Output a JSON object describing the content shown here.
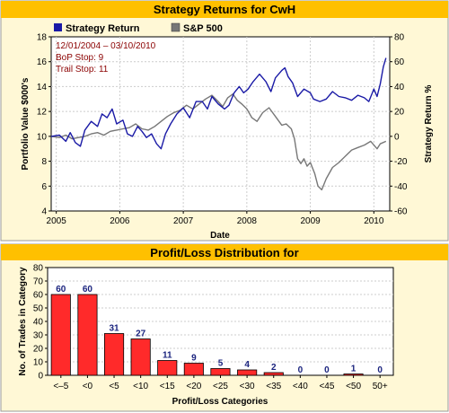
{
  "colors": {
    "panel_bg": "#fff8d6",
    "title_bar": "#ffc000",
    "border": "#9a9a9a",
    "strategy": "#1a1aa6",
    "sp500": "#777777",
    "bar": "#ff2a2a",
    "bar_label": "#1a237e",
    "note": "#8b0000"
  },
  "chart_data": [
    {
      "type": "line",
      "title": "Strategy Returns for CwH",
      "xlabel": "Date",
      "ylabel": "Portfolio Value $000's",
      "ylabel_right": "Strategy Return %",
      "ylim": [
        4,
        18
      ],
      "ylim_right": [
        -60,
        80
      ],
      "xlim": [
        2004.92,
        2010.25
      ],
      "x_ticks": [
        2005,
        2006,
        2007,
        2008,
        2009,
        2010
      ],
      "x_tick_labels": [
        "2005",
        "2006",
        "2007",
        "2008",
        "2009",
        "2010"
      ],
      "y_ticks": [
        4,
        6,
        8,
        10,
        12,
        14,
        16,
        18
      ],
      "y_ticks_right": [
        -60,
        -40,
        -20,
        0,
        20,
        40,
        60,
        80
      ],
      "grid": true,
      "legend": "top-left",
      "annotations": [
        "12/01/2004 – 03/10/2010",
        "BoP Stop: 9",
        "Trail Stop: 11"
      ],
      "series": [
        {
          "name": "Strategy Return",
          "color": "#1a1aa6",
          "x": [
            2004.92,
            2005.05,
            2005.15,
            2005.22,
            2005.3,
            2005.38,
            2005.45,
            2005.55,
            2005.65,
            2005.72,
            2005.8,
            2005.88,
            2005.95,
            2006.05,
            2006.12,
            2006.2,
            2006.28,
            2006.35,
            2006.42,
            2006.5,
            2006.58,
            2006.65,
            2006.72,
            2006.8,
            2006.9,
            2007.0,
            2007.1,
            2007.2,
            2007.3,
            2007.38,
            2007.45,
            2007.55,
            2007.65,
            2007.72,
            2007.8,
            2007.88,
            2007.95,
            2008.02,
            2008.1,
            2008.2,
            2008.3,
            2008.38,
            2008.45,
            2008.55,
            2008.6,
            2008.65,
            2008.72,
            2008.8,
            2008.9,
            2009.0,
            2009.05,
            2009.15,
            2009.25,
            2009.35,
            2009.45,
            2009.55,
            2009.65,
            2009.75,
            2009.85,
            2009.92,
            2010.0,
            2010.05,
            2010.1,
            2010.15,
            2010.19
          ],
          "y": [
            10.0,
            10.1,
            9.6,
            10.3,
            9.5,
            9.2,
            10.5,
            11.2,
            10.8,
            11.8,
            11.5,
            12.2,
            11.0,
            11.3,
            10.2,
            10.0,
            10.8,
            10.4,
            9.9,
            10.2,
            9.4,
            9.0,
            10.2,
            11.0,
            11.8,
            12.3,
            11.5,
            12.8,
            12.8,
            12.2,
            13.2,
            12.6,
            12.2,
            12.5,
            13.5,
            14.0,
            13.5,
            13.8,
            14.4,
            15.0,
            14.4,
            13.6,
            14.7,
            15.3,
            15.5,
            14.8,
            14.3,
            13.2,
            13.8,
            13.5,
            13.0,
            12.8,
            13.0,
            13.6,
            13.2,
            13.1,
            12.9,
            13.3,
            13.1,
            12.8,
            13.8,
            13.2,
            14.2,
            15.6,
            16.3
          ]
        },
        {
          "name": "S&P 500",
          "color": "#777777",
          "x": [
            2004.92,
            2005.05,
            2005.15,
            2005.25,
            2005.35,
            2005.45,
            2005.55,
            2005.65,
            2005.75,
            2005.85,
            2005.95,
            2006.05,
            2006.15,
            2006.25,
            2006.35,
            2006.45,
            2006.55,
            2006.65,
            2006.75,
            2006.85,
            2006.95,
            2007.05,
            2007.15,
            2007.25,
            2007.35,
            2007.45,
            2007.55,
            2007.62,
            2007.7,
            2007.78,
            2007.85,
            2007.92,
            2008.0,
            2008.08,
            2008.16,
            2008.25,
            2008.35,
            2008.45,
            2008.55,
            2008.62,
            2008.7,
            2008.75,
            2008.8,
            2008.85,
            2008.9,
            2008.95,
            2009.0,
            2009.07,
            2009.12,
            2009.18,
            2009.25,
            2009.35,
            2009.45,
            2009.55,
            2009.65,
            2009.75,
            2009.85,
            2009.95,
            2010.05,
            2010.1,
            2010.19
          ],
          "y": [
            10.0,
            9.9,
            10.1,
            9.8,
            9.9,
            10.0,
            10.2,
            10.3,
            10.1,
            10.4,
            10.5,
            10.6,
            10.7,
            11.0,
            10.6,
            10.5,
            10.8,
            11.2,
            11.6,
            11.9,
            12.1,
            12.5,
            12.2,
            12.6,
            13.0,
            13.3,
            12.8,
            12.4,
            13.1,
            13.4,
            12.9,
            12.6,
            12.2,
            11.5,
            11.2,
            11.9,
            12.3,
            11.6,
            10.9,
            11.0,
            10.6,
            9.8,
            8.2,
            7.8,
            8.2,
            7.6,
            7.9,
            7.0,
            6.0,
            5.7,
            6.6,
            7.5,
            7.9,
            8.4,
            8.9,
            9.1,
            9.3,
            9.6,
            9.0,
            9.4,
            9.6
          ]
        }
      ]
    },
    {
      "type": "bar",
      "title": "Profit/Loss Distribution for",
      "xlabel": "Profit/Loss Categories",
      "ylabel": "No. of Trades in Category",
      "ylim": [
        0,
        80
      ],
      "y_ticks": [
        0,
        10,
        20,
        30,
        40,
        50,
        60,
        70,
        80
      ],
      "grid": true,
      "categories": [
        "<–5",
        "<0",
        "<5",
        "<10",
        "<15",
        "<20",
        "<25",
        "<30",
        "<35",
        "<40",
        "<45",
        "<50",
        "50+"
      ],
      "values": [
        60,
        60,
        31,
        27,
        11,
        9,
        5,
        4,
        2,
        0,
        0,
        1,
        0
      ]
    }
  ]
}
